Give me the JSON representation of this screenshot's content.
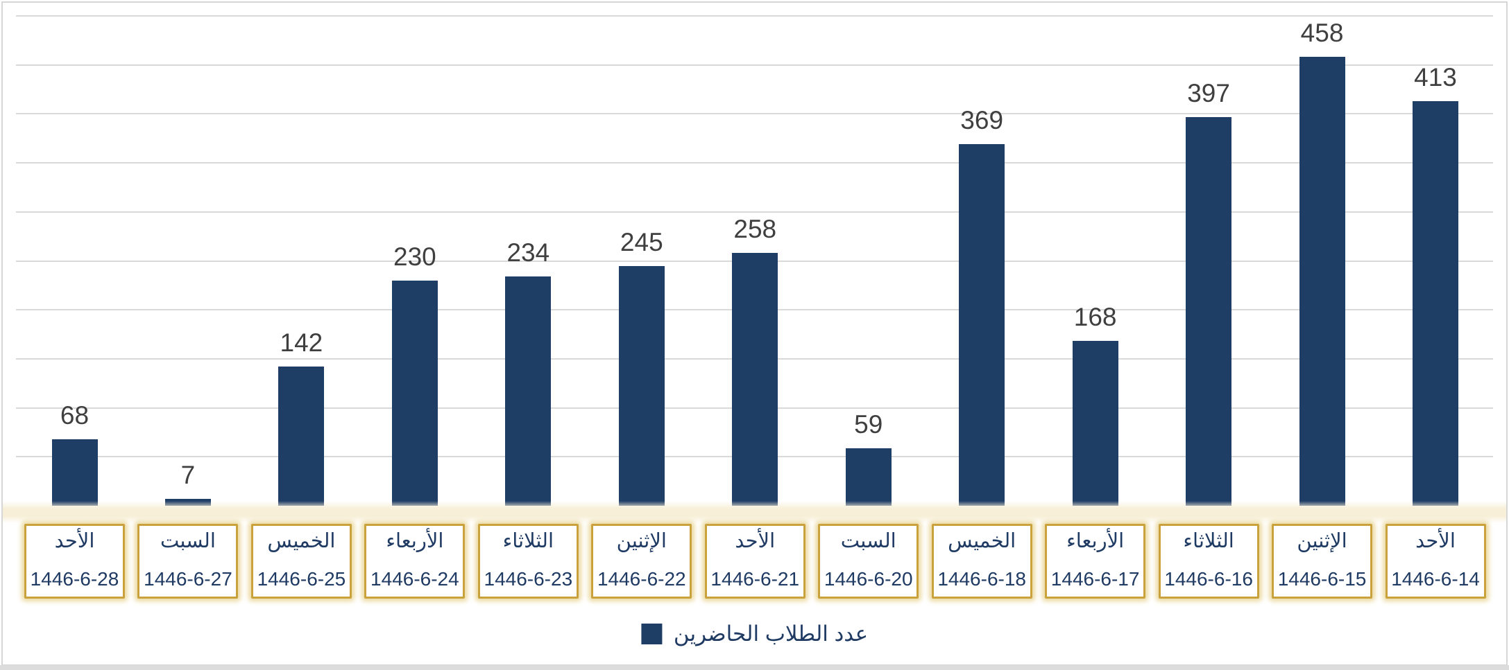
{
  "chart_data": {
    "type": "bar",
    "direction": "rtl",
    "title": "",
    "xlabel": "",
    "ylabel": "",
    "legend": "عدد الطلاب الحاضرين",
    "legend_position": "bottom-center",
    "grid": true,
    "grid_step": 50,
    "ylim": [
      0,
      500
    ],
    "y_axis_labels_visible": false,
    "categories": [
      {
        "day": "الأحد",
        "date": "1446-6-28"
      },
      {
        "day": "السبت",
        "date": "1446-6-27"
      },
      {
        "day": "الخميس",
        "date": "1446-6-25"
      },
      {
        "day": "الأربعاء",
        "date": "1446-6-24"
      },
      {
        "day": "الثلاثاء",
        "date": "1446-6-23"
      },
      {
        "day": "الإثنين",
        "date": "1446-6-22"
      },
      {
        "day": "الأحد",
        "date": "1446-6-21"
      },
      {
        "day": "السبت",
        "date": "1446-6-20"
      },
      {
        "day": "الخميس",
        "date": "1446-6-18"
      },
      {
        "day": "الأربعاء",
        "date": "1446-6-17"
      },
      {
        "day": "الثلاثاء",
        "date": "1446-6-16"
      },
      {
        "day": "الإثنين",
        "date": "1446-6-15"
      },
      {
        "day": "الأحد",
        "date": "1446-6-14"
      }
    ],
    "values": [
      68,
      7,
      142,
      230,
      234,
      245,
      258,
      59,
      369,
      168,
      397,
      458,
      413
    ],
    "colors": {
      "bar": "#1e3e66",
      "grid": "#d9d9d9",
      "value_label": "#3f3f3f",
      "navy_text": "#1f3a63",
      "box_border": "#c9a23d",
      "box_glow": "rgba(230,205,130,0.75)",
      "axis_band": "#f7efd7",
      "frame_border": "#d6d6d6",
      "bottom_strip": "#dcdcdc",
      "background": "#ffffff"
    }
  }
}
